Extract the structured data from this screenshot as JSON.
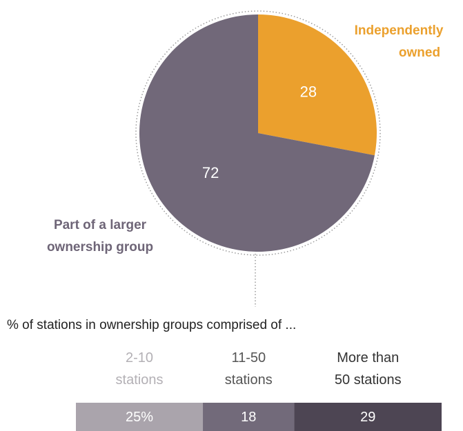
{
  "chart_data": [
    {
      "type": "pie",
      "slices": [
        {
          "name": "Independently owned",
          "label_lines": [
            "Independently",
            "owned"
          ],
          "value": 28,
          "value_label": "28",
          "color": "#eba02d"
        },
        {
          "name": "Part of a larger ownership group",
          "label_lines": [
            "Part of a larger",
            "ownership group"
          ],
          "value": 72,
          "value_label": "72",
          "color": "#716879"
        }
      ]
    },
    {
      "type": "bar",
      "subtitle": "% of stations in ownership groups comprised of ...",
      "orientation": "stacked-horizontal",
      "segments": [
        {
          "header_lines": [
            "2-10",
            "stations"
          ],
          "value": 25,
          "value_label": "25%",
          "color": "#aaa4ac",
          "header_color": "#b3b0b5"
        },
        {
          "header_lines": [
            "11-50",
            "stations"
          ],
          "value": 18,
          "value_label": "18",
          "color": "#726a7a",
          "header_color": "#555555"
        },
        {
          "header_lines": [
            "More than",
            "50 stations"
          ],
          "value": 29,
          "value_label": "29",
          "color": "#4d4553",
          "header_color": "#333333"
        }
      ]
    }
  ]
}
